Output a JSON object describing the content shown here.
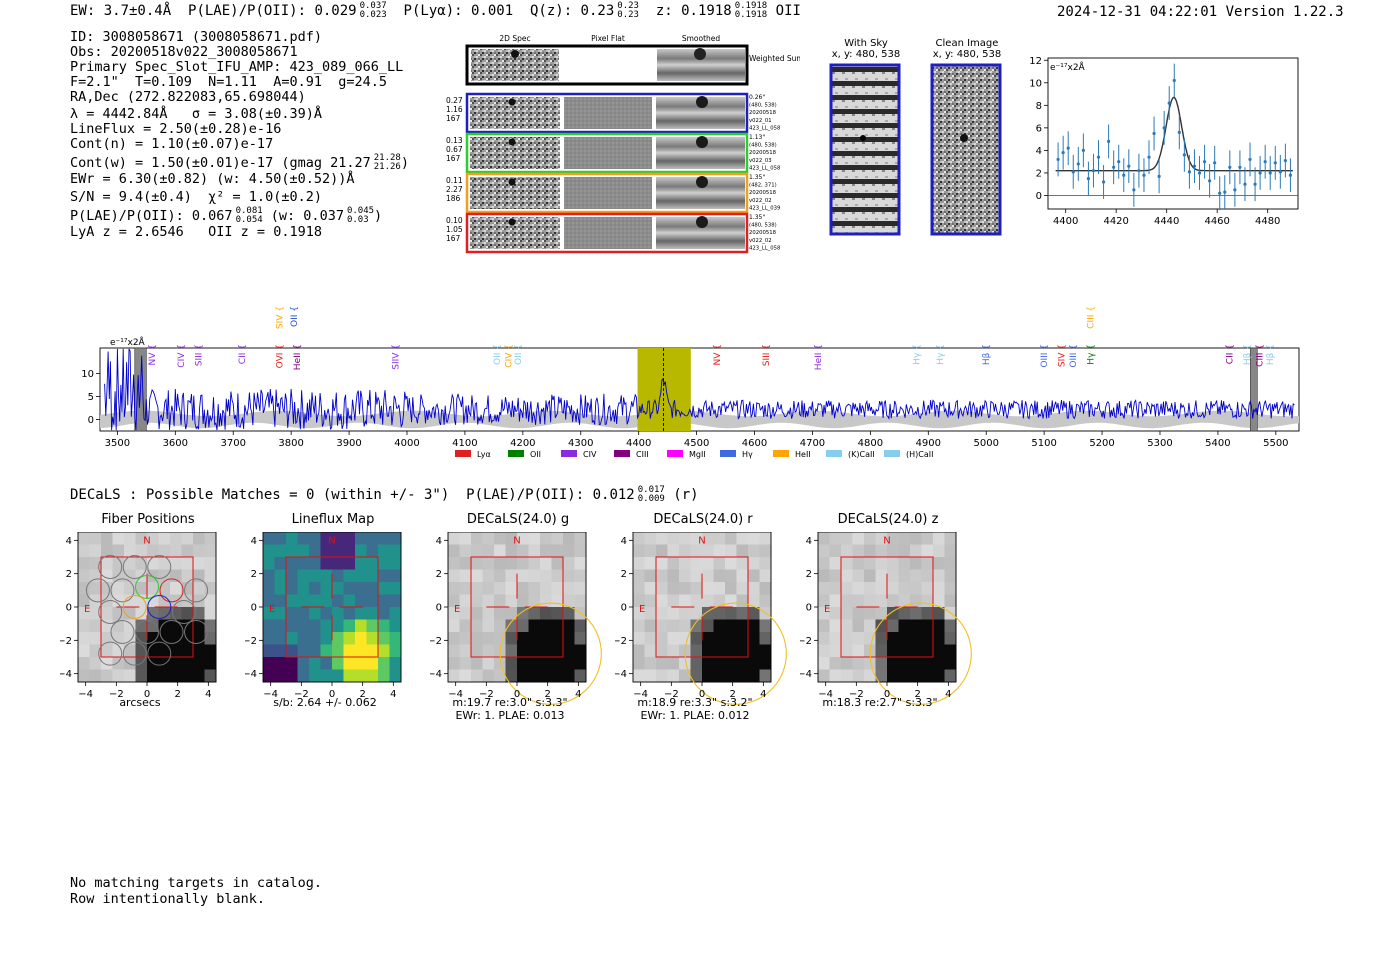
{
  "header": {
    "ew": "EW: 3.7±0.4Å",
    "plae_label": "P(LAE)/P(OII): 0.029",
    "plae_hi": "0.037",
    "plae_lo": "0.023",
    "plya": "P(Lyα): 0.001",
    "qz_label": "Q(z): 0.23",
    "qz_hi": "0.23",
    "qz_lo": "0.23",
    "z_label": "z: 0.1918",
    "z_hi": "0.1918",
    "z_lo": "0.1918",
    "z_line": "OII",
    "timestamp": "2024-12-31 04:22:01",
    "version": "Version 1.22.3"
  },
  "info": {
    "id": "ID: 3008058671 (3008058671.pdf)",
    "obs": "Obs: 20200518v022_3008058671",
    "primary": "Primary Spec_Slot_IFU_AMP: 423_089_066_LL",
    "fiber": "F=2.1\"  T=0.109  N=1.11  A=0.91  g=24.5",
    "radec": "RA,Dec (272.822083,65.698044)",
    "lambda": "λ = 4442.84Å   σ = 3.08(±0.39)Å",
    "lineflux": "LineFlux = 2.50(±0.28)e-16",
    "contn": "Cont(n) = 1.10(±0.07)e-17",
    "contw": "Cont(w) = 1.50(±0.01)e-17 (gmag 21.27",
    "contw_hi": "21.28",
    "contw_lo": "21.26",
    "ewr": "EWr = 6.30(±0.82) (w: 4.50(±0.52))Å",
    "sn": "S/N = 9.4(±0.4)  χ² = 1.0(±0.2)",
    "plae": "P(LAE)/P(OII): 0.067",
    "plae_hi": "0.081",
    "plae_lo": "0.054",
    "plae_w": "(w: 0.037",
    "plae_w_hi": "0.045",
    "plae_w_lo": "0.03",
    "lya": "LyA z = 2.6546   OII z = 0.1918"
  },
  "cutouts": {
    "col_titles": [
      "2D Spec",
      "Pixel Flat",
      "Smoothed"
    ],
    "weighted_sum": "Weighted Sum",
    "rows": [
      {
        "vals": [
          "0.27",
          "1.16",
          "167"
        ],
        "meta": [
          "0.26\"",
          "(480, 538)",
          "20200518",
          "v022_01",
          "423_LL_058"
        ],
        "color": "#1f1fbf"
      },
      {
        "vals": [
          "0.13",
          "0.67",
          "167"
        ],
        "meta": [
          "1.13\"",
          "(480, 538)",
          "20200518",
          "v022_03",
          "423_LL_058"
        ],
        "color": "#2ecc2e"
      },
      {
        "vals": [
          "0.11",
          "2.27",
          "186"
        ],
        "meta": [
          "1.35\"",
          "(482, 371)",
          "20200518",
          "v022_02",
          "423_LL_039"
        ],
        "color": "#f0a020"
      },
      {
        "vals": [
          "0.10",
          "1.05",
          "167"
        ],
        "meta": [
          "1.35\"",
          "(480, 538)",
          "20200518",
          "v022_02",
          "423_LL_058"
        ],
        "color": "#e02020"
      }
    ]
  },
  "sky": {
    "with_sky_title": "With Sky",
    "with_sky_coords": "x, y: 480, 538",
    "clean_title": "Clean Image",
    "clean_coords": "x, y: 480, 538"
  },
  "decals": {
    "title": "DECaLS : Possible Matches = 0 (within +/- 3\")  P(LAE)/P(OII): 0.012",
    "plae_hi": "0.017",
    "plae_lo": "0.009",
    "band": "(r)",
    "panels": [
      {
        "title": "Fiber Positions",
        "xlabel": "arcsecs",
        "caption2": ""
      },
      {
        "title": "Lineflux Map",
        "xlabel": "s/b: 2.64 +/- 0.062",
        "caption2": ""
      },
      {
        "title": "DECaLS(24.0) g",
        "xlabel": "m:19.7  re:3.0\"  s:3.3\"",
        "caption2": "EWr: 1. PLAE: 0.013"
      },
      {
        "title": "DECaLS(24.0) r",
        "xlabel": "m:18.9  re:3.3\"  s:3.2\"",
        "caption2": "EWr: 1. PLAE: 0.012"
      },
      {
        "title": "DECaLS(24.0) z",
        "xlabel": "m:18.3  re:2.7\"  s:3.3\"",
        "caption2": ""
      }
    ],
    "compass_n": "N",
    "compass_e": "E"
  },
  "footer": {
    "line1": "No matching targets in catalog.",
    "line2": "Row intentionally blank."
  },
  "chart_data": [
    {
      "id": "zoom_line_fit",
      "type": "scatter",
      "title": "",
      "unit_label": "e⁻¹⁷x2Å",
      "xlabel": "",
      "ylabel": "",
      "xlim": [
        4393,
        4492
      ],
      "ylim": [
        -1.2,
        12.2
      ],
      "xticks": [
        4400,
        4420,
        4440,
        4460,
        4480
      ],
      "yticks": [
        0,
        2,
        4,
        6,
        8,
        10,
        12
      ],
      "points_x": [
        4397,
        4399,
        4401,
        4403,
        4405,
        4407,
        4409,
        4411,
        4413,
        4415,
        4417,
        4419,
        4421,
        4423,
        4425,
        4427,
        4429,
        4431,
        4433,
        4435,
        4437,
        4439,
        4441,
        4443,
        4445,
        4447,
        4449,
        4451,
        4453,
        4455,
        4457,
        4459,
        4461,
        4463,
        4465,
        4467,
        4469,
        4471,
        4473,
        4475,
        4477,
        4479,
        4481,
        4483,
        4485,
        4487,
        4489
      ],
      "points_y": [
        3.2,
        3.8,
        4.2,
        2.1,
        2.8,
        4.0,
        1.5,
        2.2,
        3.4,
        1.2,
        4.8,
        2.5,
        3.0,
        1.8,
        2.6,
        0.5,
        2.2,
        1.8,
        3.4,
        5.5,
        1.7,
        6.0,
        8.2,
        10.2,
        5.6,
        3.6,
        2.1,
        2.6,
        2.0,
        3.0,
        1.3,
        2.9,
        0.2,
        0.3,
        2.5,
        0.5,
        2.5,
        1.0,
        3.2,
        1.0,
        2.0,
        3.0,
        2.0,
        2.9,
        2.1,
        3.1,
        1.8
      ],
      "errors": [
        1.5,
        1.5,
        1.5,
        1.5,
        1.5,
        1.5,
        1.5,
        1.5,
        1.5,
        1.5,
        1.5,
        1.5,
        1.5,
        1.5,
        1.5,
        1.5,
        1.5,
        1.5,
        1.5,
        1.5,
        1.5,
        1.5,
        1.5,
        1.5,
        1.5,
        1.5,
        1.5,
        1.5,
        1.5,
        1.5,
        1.5,
        1.5,
        1.5,
        1.5,
        1.5,
        1.5,
        1.5,
        1.5,
        1.5,
        1.5,
        1.5,
        1.5,
        1.5,
        1.5,
        1.5,
        1.5,
        1.5
      ],
      "fit": {
        "amplitude": 6.5,
        "center": 4442.84,
        "sigma": 3.08,
        "continuum": 2.2,
        "x_range": [
          4396,
          4490
        ]
      },
      "colors": {
        "points": "#2a7ab8",
        "fit": "#333333"
      }
    },
    {
      "id": "full_spectrum",
      "type": "line",
      "title": "",
      "unit_label": "e⁻¹⁷x2Å",
      "xlim": [
        3470,
        5540
      ],
      "ylim": [
        -2.5,
        15.5
      ],
      "xticks": [
        3500,
        3600,
        3700,
        3800,
        3900,
        4000,
        4100,
        4200,
        4300,
        4400,
        4500,
        4600,
        4700,
        4800,
        4900,
        5000,
        5100,
        5200,
        5300,
        5400,
        5500
      ],
      "yticks": [
        0,
        5,
        10
      ],
      "highlight_window": [
        4398,
        4490
      ],
      "line_center": 4442.84,
      "masked_regions": [
        [
          3530,
          3550
        ],
        [
          5456,
          5468
        ]
      ],
      "noise_level": 9,
      "seed": 7,
      "line_marks": [
        {
          "label": "Lyα",
          "color": "#e02020"
        },
        {
          "label": "OII",
          "color": "#008000"
        },
        {
          "label": "CIV",
          "color": "#8a2be2"
        },
        {
          "label": "CIII",
          "color": "#800080"
        },
        {
          "label": "MgII",
          "color": "#ff00ff"
        },
        {
          "label": "Hγ",
          "color": "#4169e1"
        },
        {
          "label": "HeII",
          "color": "#ffa500"
        },
        {
          "label": "(K)CaII",
          "color": "#87ceeb"
        },
        {
          "label": "(H)CaII",
          "color": "#87ceeb"
        }
      ],
      "lines_top": [
        {
          "label": "SIV",
          "x": 3780,
          "color": "#ffa500"
        },
        {
          "label": "OII",
          "x": 3805,
          "color": "#1f4fbf"
        },
        {
          "label": "CIII",
          "x": 5180,
          "color": "#ffa500"
        }
      ],
      "lines_bottom": [
        {
          "label": "NV",
          "x": 3560,
          "color": "#8a2be2"
        },
        {
          "label": "CIV",
          "x": 3610,
          "color": "#8a2be2"
        },
        {
          "label": "SIII",
          "x": 3640,
          "color": "#8a2be2"
        },
        {
          "label": "CII",
          "x": 3715,
          "color": "#8a2be2"
        },
        {
          "label": "OVI",
          "x": 3780,
          "color": "#e02020"
        },
        {
          "label": "HeII",
          "x": 3810,
          "color": "#800080"
        },
        {
          "label": "SIIV",
          "x": 3980,
          "color": "#8a2be2"
        },
        {
          "label": "OII",
          "x": 4155,
          "color": "#87ceeb"
        },
        {
          "label": "CIV",
          "x": 4175,
          "color": "#ffa500"
        },
        {
          "label": "OII",
          "x": 4192,
          "color": "#87ceeb"
        },
        {
          "label": "NV",
          "x": 4535,
          "color": "#e02020"
        },
        {
          "label": "SIII",
          "x": 4620,
          "color": "#e02020"
        },
        {
          "label": "HeII",
          "x": 4710,
          "color": "#8a2be2"
        },
        {
          "label": "Hγ",
          "x": 4880,
          "color": "#87ceeb"
        },
        {
          "label": "Hγ",
          "x": 4920,
          "color": "#87ceeb"
        },
        {
          "label": "Hβ",
          "x": 5000,
          "color": "#4169e1"
        },
        {
          "label": "OIII",
          "x": 5100,
          "color": "#4169e1"
        },
        {
          "label": "SIV",
          "x": 5130,
          "color": "#e02020"
        },
        {
          "label": "OIII",
          "x": 5150,
          "color": "#4169e1"
        },
        {
          "label": "Hγ",
          "x": 5180,
          "color": "#008000"
        },
        {
          "label": "CII",
          "x": 5420,
          "color": "#800080"
        },
        {
          "label": "Hβ",
          "x": 5450,
          "color": "#87ceeb"
        },
        {
          "label": "CIII",
          "x": 5472,
          "color": "#800080"
        },
        {
          "label": "Hβ",
          "x": 5490,
          "color": "#87ceeb"
        }
      ]
    },
    {
      "id": "cutout_axes",
      "type": "table",
      "xlim": [
        -4.5,
        4.5
      ],
      "ylim": [
        -4.5,
        4.5
      ],
      "ticks": [
        -4,
        -2,
        0,
        2,
        4
      ]
    }
  ]
}
